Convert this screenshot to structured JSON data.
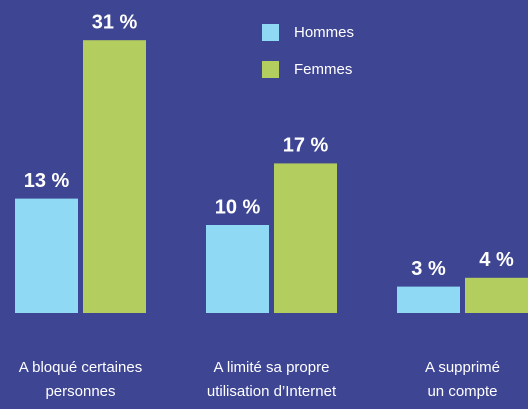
{
  "chart_data": {
    "type": "bar",
    "categories": [
      [
        "A bloqué certaines",
        "personnes"
      ],
      [
        "A limité sa propre",
        "utilisation d’Internet"
      ],
      [
        "A supprimé",
        "un compte"
      ]
    ],
    "series": [
      {
        "name": "Hommes",
        "color": "#8fd9f5",
        "values": [
          13,
          10,
          3
        ],
        "value_labels": [
          "13 %",
          "10 %",
          "3 %"
        ]
      },
      {
        "name": "Femmes",
        "color": "#b4cd5f",
        "values": [
          31,
          17,
          4
        ],
        "value_labels": [
          "31 %",
          "17 %",
          "4 %"
        ]
      }
    ]
  }
}
